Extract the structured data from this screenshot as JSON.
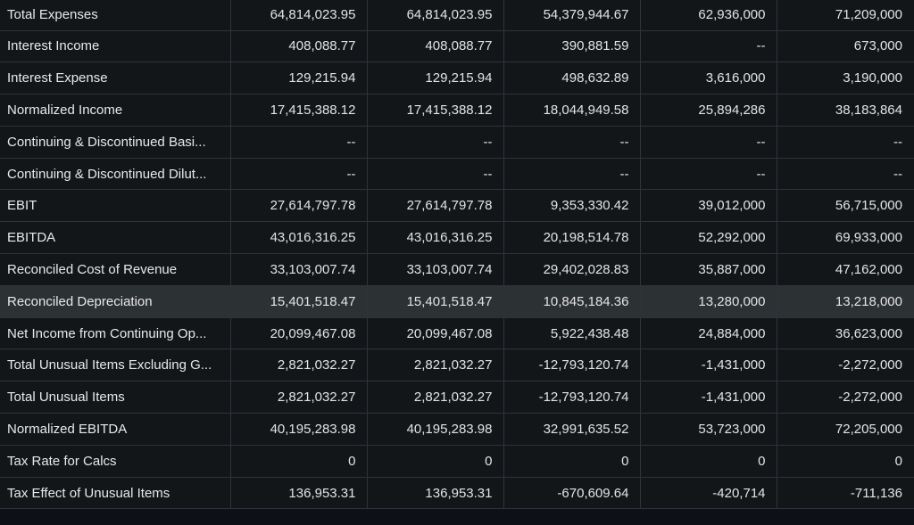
{
  "rows": [
    {
      "label": "Total Expenses",
      "values": [
        "64,814,023.95",
        "64,814,023.95",
        "54,379,944.67",
        "62,936,000",
        "71,209,000"
      ]
    },
    {
      "label": "Interest Income",
      "values": [
        "408,088.77",
        "408,088.77",
        "390,881.59",
        "--",
        "673,000"
      ]
    },
    {
      "label": "Interest Expense",
      "values": [
        "129,215.94",
        "129,215.94",
        "498,632.89",
        "3,616,000",
        "3,190,000"
      ]
    },
    {
      "label": "Normalized Income",
      "values": [
        "17,415,388.12",
        "17,415,388.12",
        "18,044,949.58",
        "25,894,286",
        "38,183,864"
      ]
    },
    {
      "label": "Continuing & Discontinued Basi...",
      "values": [
        "--",
        "--",
        "--",
        "--",
        "--"
      ]
    },
    {
      "label": "Continuing & Discontinued Dilut...",
      "values": [
        "--",
        "--",
        "--",
        "--",
        "--"
      ]
    },
    {
      "label": "EBIT",
      "values": [
        "27,614,797.78",
        "27,614,797.78",
        "9,353,330.42",
        "39,012,000",
        "56,715,000"
      ]
    },
    {
      "label": "EBITDA",
      "values": [
        "43,016,316.25",
        "43,016,316.25",
        "20,198,514.78",
        "52,292,000",
        "69,933,000"
      ]
    },
    {
      "label": "Reconciled Cost of Revenue",
      "values": [
        "33,103,007.74",
        "33,103,007.74",
        "29,402,028.83",
        "35,887,000",
        "47,162,000"
      ]
    },
    {
      "label": "Reconciled Depreciation",
      "values": [
        "15,401,518.47",
        "15,401,518.47",
        "10,845,184.36",
        "13,280,000",
        "13,218,000"
      ]
    },
    {
      "label": "Net Income from Continuing Op...",
      "values": [
        "20,099,467.08",
        "20,099,467.08",
        "5,922,438.48",
        "24,884,000",
        "36,623,000"
      ]
    },
    {
      "label": "Total Unusual Items Excluding G...",
      "values": [
        "2,821,032.27",
        "2,821,032.27",
        "-12,793,120.74",
        "-1,431,000",
        "-2,272,000"
      ]
    },
    {
      "label": "Total Unusual Items",
      "values": [
        "2,821,032.27",
        "2,821,032.27",
        "-12,793,120.74",
        "-1,431,000",
        "-2,272,000"
      ]
    },
    {
      "label": "Normalized EBITDA",
      "values": [
        "40,195,283.98",
        "40,195,283.98",
        "32,991,635.52",
        "53,723,000",
        "72,205,000"
      ]
    },
    {
      "label": "Tax Rate for Calcs",
      "values": [
        "0",
        "0",
        "0",
        "0",
        "0"
      ]
    },
    {
      "label": "Tax Effect of Unusual Items",
      "values": [
        "136,953.31",
        "136,953.31",
        "-670,609.64",
        "-420,714",
        "-711,136"
      ]
    }
  ],
  "highlighted_row": "Reconciled Depreciation",
  "colors": {
    "background": "#131619",
    "highlight": "#2c3134",
    "border": "#2f3338",
    "text": "#e6e6e6"
  }
}
